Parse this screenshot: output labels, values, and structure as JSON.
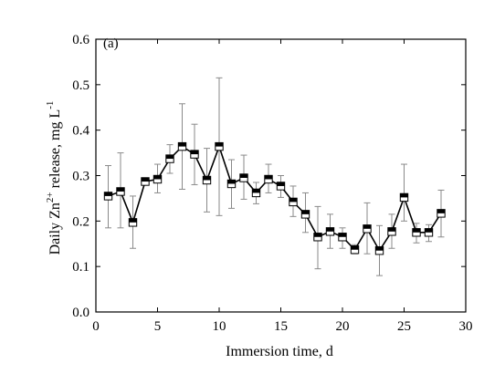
{
  "chart_data": {
    "type": "line",
    "panel_label": "(a)",
    "xlabel": "Immersion time, d",
    "ylabel": {
      "prefix": "Daily Zn",
      "superscript": "2+",
      "middle": " release, mg L",
      "unit_superscript": "-1"
    },
    "xlim": [
      0,
      30
    ],
    "ylim": [
      0.0,
      0.6
    ],
    "xticks": [
      0,
      5,
      10,
      15,
      20,
      25,
      30
    ],
    "yticks": [
      0.0,
      0.1,
      0.2,
      0.3,
      0.4,
      0.5,
      0.6
    ],
    "ytick_labels": [
      "0.0",
      "0.1",
      "0.2",
      "0.3",
      "0.4",
      "0.5",
      "0.6"
    ],
    "grid": false,
    "marker": "half-filled square",
    "line_color": "#000000",
    "errorbar_color": "#8a8a8a",
    "series": [
      {
        "x": [
          1,
          2,
          3,
          4,
          5,
          6,
          7,
          8,
          9,
          10,
          11,
          12,
          13,
          14,
          15,
          16,
          17,
          18,
          19,
          20,
          21,
          22,
          23,
          24,
          25,
          26,
          27,
          28
        ],
        "y": [
          0.255,
          0.265,
          0.197,
          0.287,
          0.292,
          0.337,
          0.364,
          0.347,
          0.29,
          0.364,
          0.282,
          0.295,
          0.262,
          0.292,
          0.277,
          0.242,
          0.215,
          0.165,
          0.177,
          0.165,
          0.137,
          0.183,
          0.135,
          0.177,
          0.252,
          0.175,
          0.175,
          0.217
        ],
        "err_low": [
          0.185,
          0.185,
          0.14,
          0.28,
          0.262,
          0.305,
          0.27,
          0.28,
          0.22,
          0.212,
          0.228,
          0.248,
          0.238,
          0.262,
          0.252,
          0.21,
          0.175,
          0.095,
          0.14,
          0.14,
          0.128,
          0.128,
          0.08,
          0.14,
          0.2,
          0.152,
          0.155,
          0.165
        ],
        "err_high": [
          0.322,
          0.35,
          0.255,
          0.295,
          0.325,
          0.368,
          0.458,
          0.413,
          0.36,
          0.515,
          0.335,
          0.345,
          0.285,
          0.325,
          0.3,
          0.277,
          0.262,
          0.232,
          0.215,
          0.185,
          0.148,
          0.24,
          0.19,
          0.215,
          0.325,
          0.195,
          0.192,
          0.268
        ]
      }
    ]
  }
}
